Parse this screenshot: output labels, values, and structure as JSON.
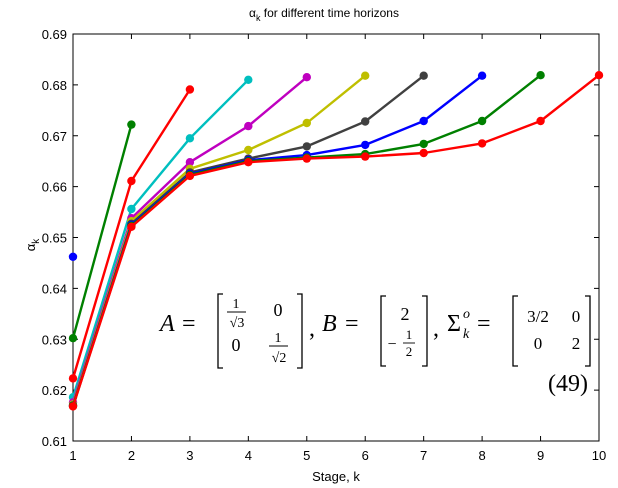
{
  "chart_data": {
    "type": "line",
    "title_main": "α",
    "title_sub": "k",
    "title_rest": " for different time horizons",
    "xlabel": "Stage, k",
    "ylabel_main": "α",
    "ylabel_sub": "k",
    "xlim": [
      1,
      10
    ],
    "ylim": [
      0.61,
      0.69
    ],
    "xticks": [
      1,
      2,
      3,
      4,
      5,
      6,
      7,
      8,
      9,
      10
    ],
    "yticks": [
      "0.61",
      "0.62",
      "0.63",
      "0.64",
      "0.65",
      "0.66",
      "0.67",
      "0.68",
      "0.69"
    ],
    "grid": false,
    "series": [
      {
        "color": "#0000ff",
        "x": [
          1
        ],
        "y": [
          0.6462
        ]
      },
      {
        "color": "#008000",
        "x": [
          1,
          2
        ],
        "y": [
          0.6302,
          0.6722
        ]
      },
      {
        "color": "#ff0000",
        "x": [
          1,
          2,
          3
        ],
        "y": [
          0.6223,
          0.6611,
          0.6791
        ]
      },
      {
        "color": "#00bfbf",
        "x": [
          1,
          2,
          3,
          4
        ],
        "y": [
          0.6186,
          0.6556,
          0.6695,
          0.681
        ]
      },
      {
        "color": "#bf00bf",
        "x": [
          1,
          2,
          3,
          4,
          5
        ],
        "y": [
          0.6176,
          0.6538,
          0.6648,
          0.6719,
          0.6815
        ]
      },
      {
        "color": "#bfbf00",
        "x": [
          1,
          2,
          3,
          4,
          5,
          6
        ],
        "y": [
          0.6172,
          0.6532,
          0.6635,
          0.6672,
          0.6725,
          0.6818
        ]
      },
      {
        "color": "#404040",
        "x": [
          1,
          2,
          3,
          4,
          5,
          6,
          7
        ],
        "y": [
          0.617,
          0.6527,
          0.6628,
          0.6655,
          0.6679,
          0.6728,
          0.6818
        ]
      },
      {
        "color": "#0000ff",
        "x": [
          1,
          2,
          3,
          4,
          5,
          6,
          7,
          8
        ],
        "y": [
          0.6169,
          0.6525,
          0.6625,
          0.6652,
          0.6662,
          0.6682,
          0.6729,
          0.6818
        ]
      },
      {
        "color": "#008000",
        "x": [
          1,
          2,
          3,
          4,
          5,
          6,
          7,
          8,
          9
        ],
        "y": [
          0.6169,
          0.6523,
          0.6623,
          0.665,
          0.6657,
          0.6664,
          0.6684,
          0.6729,
          0.6819
        ]
      },
      {
        "color": "#ff0000",
        "x": [
          1,
          2,
          3,
          4,
          5,
          6,
          7,
          8,
          9,
          10
        ],
        "y": [
          0.6168,
          0.6521,
          0.6621,
          0.6648,
          0.6655,
          0.6659,
          0.6666,
          0.6685,
          0.6729,
          0.6819
        ]
      }
    ]
  },
  "equation": {
    "A": "A",
    "eq": "=",
    "a11_num": "1",
    "a11_den": "√3",
    "a12": "0",
    "a21": "0",
    "a22_num": "1",
    "a22_den": "√2",
    "sep1": ",",
    "B": "B",
    "b1": "2",
    "b2_sign": "−",
    "b2_num": "1",
    "b2_den": "2",
    "sep2": ",",
    "Sigma": "Σ",
    "sigma_sup": "o",
    "sigma_sub": "k",
    "s11": "3/2",
    "s12": "0",
    "s21": "0",
    "s22": "2",
    "number": "(49)"
  }
}
